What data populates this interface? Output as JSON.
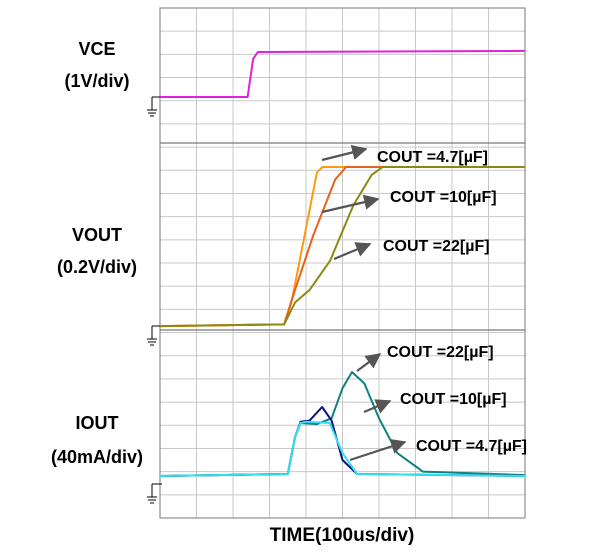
{
  "chart_data": {
    "type": "line",
    "xlabel": "TIME(100us/div)",
    "xlim": [
      0,
      10
    ],
    "xticks": [
      0,
      1,
      2,
      3,
      4,
      5,
      6,
      7,
      8,
      9,
      10
    ],
    "ylim": [
      0,
      22
    ],
    "yticks": [
      0,
      1,
      2,
      3,
      4,
      5,
      6,
      7,
      8,
      9,
      10,
      11,
      12,
      13,
      14,
      15,
      16,
      17,
      18,
      19,
      20,
      21,
      22
    ],
    "grid": true,
    "panel_labels": [
      {
        "lines": [
          "VCE",
          "(1V/div)"
        ]
      },
      {
        "lines": [
          "VOUT",
          "(0.2V/div)"
        ]
      },
      {
        "lines": [
          "IOUT",
          "(40mA/div)"
        ]
      }
    ],
    "series": [
      {
        "name": "VCE",
        "color": "#e020e0",
        "x": [
          0,
          2.4,
          2.55,
          2.68,
          10
        ],
        "values": [
          18.16,
          18.16,
          19.8,
          20.1,
          20.15
        ]
      },
      {
        "name": "COUT =4.7[µF]",
        "color": "#ff9a10",
        "x": [
          0,
          3.4,
          3.6,
          4.0,
          4.3,
          4.45,
          10
        ],
        "values": [
          8.28,
          8.35,
          9.3,
          12.5,
          14.9,
          15.14,
          15.14
        ]
      },
      {
        "name": "COUT =10[µF]",
        "color": "#e8601c",
        "x": [
          0,
          3.4,
          3.65,
          4.2,
          4.8,
          5.1,
          10
        ],
        "values": [
          8.28,
          8.35,
          9.6,
          12.2,
          14.6,
          15.14,
          15.14
        ]
      },
      {
        "name": "COUT =22[µF]",
        "color": "#8a8a10",
        "x": [
          0,
          3.4,
          3.7,
          4.1,
          4.66,
          5.3,
          5.8,
          6.1,
          10
        ],
        "values": [
          8.28,
          8.35,
          9.3,
          9.84,
          11.1,
          13.5,
          14.8,
          15.14,
          15.14
        ]
      },
      {
        "name": "COUT =22[µF]",
        "color": "#108080",
        "x": [
          0,
          3.5,
          3.7,
          3.85,
          4.3,
          4.7,
          5.0,
          5.26,
          5.6,
          6.0,
          6.5,
          7.2,
          10
        ],
        "values": [
          1.81,
          1.9,
          3.5,
          4.1,
          4.05,
          4.3,
          5.6,
          6.3,
          5.8,
          4.3,
          2.8,
          2.0,
          1.85
        ]
      },
      {
        "name": "COUT =10[µF]",
        "color": "#101080",
        "x": [
          0,
          3.5,
          3.7,
          3.85,
          4.1,
          4.44,
          4.7,
          5.0,
          5.4,
          10
        ],
        "values": [
          1.81,
          1.9,
          3.5,
          4.15,
          4.2,
          4.79,
          4.2,
          2.5,
          1.9,
          1.81
        ]
      },
      {
        "name": "COUT =4.7[µF]",
        "color": "#30e0f0",
        "x": [
          0,
          3.5,
          3.7,
          3.85,
          4.0,
          4.65,
          5.0,
          5.4,
          10
        ],
        "values": [
          1.81,
          1.9,
          3.5,
          4.1,
          4.15,
          4.1,
          2.8,
          1.9,
          1.81
        ]
      }
    ]
  }
}
